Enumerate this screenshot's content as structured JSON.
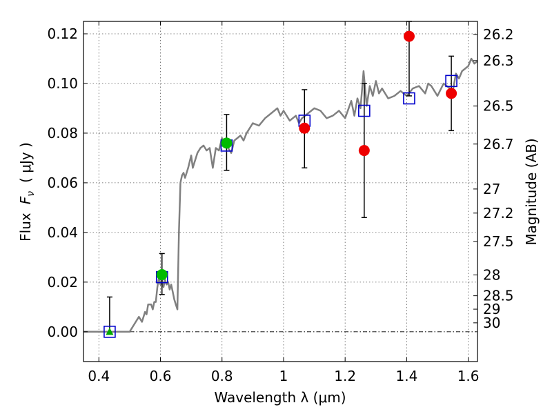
{
  "chart_data": {
    "type": "scatter",
    "xlabel": "Wavelength  λ (μm)",
    "ylabel_prefix": "Flux",
    "ylabel_symbol": "F",
    "ylabel_sub": "ν",
    "ylabel_unit": "( μJy )",
    "y2label": "Magnitude (AB)",
    "xlim": [
      0.35,
      1.63
    ],
    "ylim": [
      -0.012,
      0.125
    ],
    "grid": true,
    "x_ticks": [
      {
        "value": 0.4,
        "label": "0.4"
      },
      {
        "value": 0.6,
        "label": "0.6"
      },
      {
        "value": 0.8,
        "label": "0.8"
      },
      {
        "value": 1.0,
        "label": "1"
      },
      {
        "value": 1.2,
        "label": "1.2"
      },
      {
        "value": 1.4,
        "label": "1.4"
      },
      {
        "value": 1.6,
        "label": "1.6"
      }
    ],
    "y_ticks": [
      {
        "value": 0.0,
        "label": "0.00"
      },
      {
        "value": 0.02,
        "label": "0.02"
      },
      {
        "value": 0.04,
        "label": "0.04"
      },
      {
        "value": 0.06,
        "label": "0.06"
      },
      {
        "value": 0.08,
        "label": "0.08"
      },
      {
        "value": 0.1,
        "label": "0.10"
      },
      {
        "value": 0.12,
        "label": "0.12"
      }
    ],
    "mag_ticks": [
      {
        "flux": 0.1197,
        "label": "26.2"
      },
      {
        "flux": 0.1092,
        "label": "26.3"
      },
      {
        "flux": 0.0909,
        "label": "26.5"
      },
      {
        "flux": 0.0756,
        "label": "26.7"
      },
      {
        "flux": 0.0575,
        "label": "27"
      },
      {
        "flux": 0.0478,
        "label": "27.2"
      },
      {
        "flux": 0.0363,
        "label": "27.5"
      },
      {
        "flux": 0.0229,
        "label": "28"
      },
      {
        "flux": 0.0145,
        "label": "28.5"
      },
      {
        "flux": 0.0091,
        "label": "29"
      },
      {
        "flux": 0.0036,
        "label": "30"
      }
    ],
    "model_spectrum": {
      "color": "#808080",
      "x": [
        0.35,
        0.4,
        0.45,
        0.48,
        0.5,
        0.52,
        0.53,
        0.54,
        0.55,
        0.555,
        0.56,
        0.57,
        0.575,
        0.58,
        0.585,
        0.59,
        0.595,
        0.6,
        0.605,
        0.61,
        0.615,
        0.62,
        0.625,
        0.63,
        0.635,
        0.64,
        0.645,
        0.65,
        0.655,
        0.66,
        0.665,
        0.67,
        0.675,
        0.68,
        0.69,
        0.7,
        0.705,
        0.71,
        0.72,
        0.73,
        0.74,
        0.75,
        0.76,
        0.77,
        0.78,
        0.79,
        0.8,
        0.81,
        0.82,
        0.83,
        0.84,
        0.85,
        0.86,
        0.87,
        0.88,
        0.9,
        0.92,
        0.94,
        0.96,
        0.98,
        0.99,
        1.0,
        1.02,
        1.04,
        1.05,
        1.06,
        1.08,
        1.1,
        1.12,
        1.14,
        1.16,
        1.18,
        1.2,
        1.22,
        1.23,
        1.24,
        1.25,
        1.26,
        1.27,
        1.28,
        1.29,
        1.3,
        1.31,
        1.32,
        1.34,
        1.36,
        1.38,
        1.4,
        1.42,
        1.44,
        1.46,
        1.47,
        1.48,
        1.5,
        1.52,
        1.54,
        1.55,
        1.56,
        1.57,
        1.58,
        1.59,
        1.6,
        1.61,
        1.62,
        1.63
      ],
      "y": [
        0.0,
        0.0,
        0.0,
        0.0,
        0.0,
        0.004,
        0.006,
        0.004,
        0.008,
        0.007,
        0.011,
        0.011,
        0.009,
        0.012,
        0.012,
        0.018,
        0.022,
        0.019,
        0.021,
        0.018,
        0.021,
        0.019,
        0.02,
        0.017,
        0.019,
        0.016,
        0.013,
        0.011,
        0.009,
        0.04,
        0.06,
        0.063,
        0.064,
        0.062,
        0.066,
        0.071,
        0.066,
        0.068,
        0.072,
        0.074,
        0.075,
        0.073,
        0.074,
        0.066,
        0.074,
        0.073,
        0.078,
        0.076,
        0.074,
        0.072,
        0.077,
        0.078,
        0.079,
        0.077,
        0.08,
        0.084,
        0.083,
        0.086,
        0.088,
        0.09,
        0.087,
        0.089,
        0.085,
        0.087,
        0.084,
        0.086,
        0.088,
        0.09,
        0.089,
        0.086,
        0.087,
        0.089,
        0.086,
        0.093,
        0.087,
        0.094,
        0.09,
        0.105,
        0.091,
        0.099,
        0.095,
        0.101,
        0.096,
        0.098,
        0.094,
        0.095,
        0.097,
        0.095,
        0.098,
        0.099,
        0.096,
        0.1,
        0.099,
        0.095,
        0.1,
        0.098,
        0.097,
        0.104,
        0.102,
        0.105,
        0.106,
        0.107,
        0.11,
        0.108,
        0.109
      ]
    },
    "series": [
      {
        "marker": "square",
        "color": "#0000cc",
        "x": [
          0.435,
          0.605,
          0.815,
          1.068,
          1.262,
          1.408,
          1.545
        ],
        "y": [
          0.0,
          0.022,
          0.075,
          0.085,
          0.089,
          0.094,
          0.101
        ]
      },
      {
        "marker": "triangle",
        "color": "#00aa00",
        "x": [
          0.435
        ],
        "y": [
          0.0
        ],
        "yerr_up": [
          0.014
        ],
        "yerr_down": [
          0.0
        ]
      },
      {
        "marker": "circle",
        "color": "#00bb00",
        "x": [
          0.605,
          0.815
        ],
        "y": [
          0.023,
          0.076
        ],
        "yerr_up": [
          0.0085,
          0.0115
        ],
        "yerr_down": [
          0.008,
          0.011
        ]
      },
      {
        "marker": "circle",
        "color": "#ee0000",
        "x": [
          1.068,
          1.262,
          1.408,
          1.545
        ],
        "y": [
          0.082,
          0.073,
          0.119,
          0.096
        ],
        "yerr_up": [
          0.0155,
          0.027,
          0.006,
          0.015
        ],
        "yerr_down": [
          0.016,
          0.027,
          0.024,
          0.015
        ]
      }
    ]
  }
}
